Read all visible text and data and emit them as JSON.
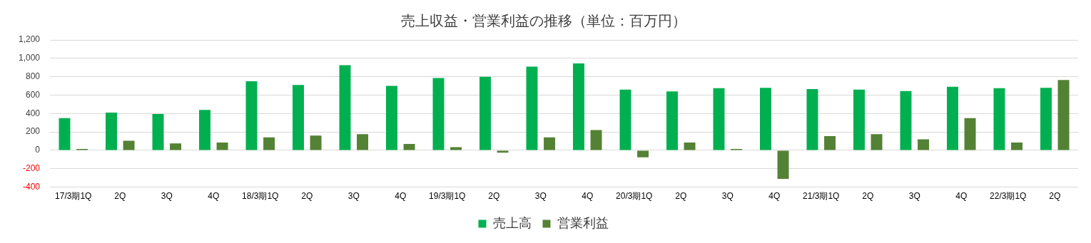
{
  "chart_data": {
    "type": "bar",
    "title": "売上収益・営業利益の推移（単位：百万円）",
    "categories": [
      "17/3期1Q",
      "2Q",
      "3Q",
      "4Q",
      "18/3期1Q",
      "2Q",
      "3Q",
      "4Q",
      "19/3期1Q",
      "2Q",
      "3Q",
      "4Q",
      "20/3期1Q",
      "2Q",
      "3Q",
      "4Q",
      "21/3期1Q",
      "2Q",
      "3Q",
      "4Q",
      "22/3期1Q",
      "2Q"
    ],
    "series": [
      {
        "name": "売上高",
        "color": "#00b050",
        "values": [
          350,
          410,
          395,
          440,
          750,
          710,
          925,
          700,
          785,
          800,
          910,
          945,
          660,
          640,
          675,
          680,
          665,
          660,
          645,
          690,
          675,
          680
        ]
      },
      {
        "name": "営業利益",
        "color": "#548235",
        "values": [
          15,
          105,
          75,
          85,
          140,
          160,
          175,
          70,
          35,
          -25,
          140,
          220,
          -75,
          85,
          15,
          -310,
          155,
          175,
          120,
          350,
          85,
          765
        ]
      }
    ],
    "ylim": [
      -400,
      1200
    ],
    "yticks": [
      -400,
      -200,
      0,
      200,
      400,
      600,
      800,
      {
        "value": 1000,
        "label": "1,000"
      },
      {
        "value": 1200,
        "label": "1,200"
      }
    ],
    "grid": "y",
    "legend": "bottom"
  }
}
